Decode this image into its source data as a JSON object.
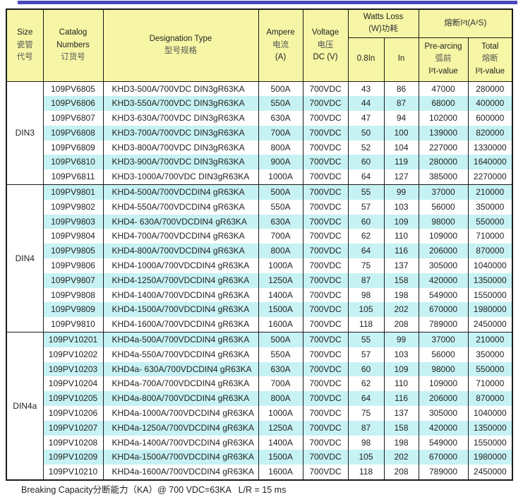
{
  "page": {
    "top_bar_color": "#4747BE",
    "header_bg": "#F6F6A6",
    "stripe_bg": "#C7F2F4",
    "border_color": "#1a1a1a"
  },
  "table": {
    "header": {
      "size": [
        "Size",
        "瓷管",
        "代号"
      ],
      "catalog": [
        "Catalog",
        "Numbers",
        "订货号"
      ],
      "designation": [
        "Designation Type",
        "型号规格"
      ],
      "ampere": [
        "Ampere",
        "电流",
        "(A)"
      ],
      "voltage": [
        "Voltage",
        "电压",
        "DC (V)"
      ],
      "watts_group": [
        "Watts Loss",
        "(W)功耗"
      ],
      "watts_sub_1": "0.8In",
      "watts_sub_2": "In",
      "i2t_group": "熔断I²t(A²S)",
      "prearcing": [
        "Pre-arcing",
        "弧前",
        "I²t-value"
      ],
      "total": [
        "Total",
        "熔断",
        "I²t-value"
      ]
    },
    "groups": [
      {
        "size": "DIN3",
        "rows": [
          {
            "catalog": "109PV6805",
            "designation": "KHD3-500A/700VDC DIN3gR63KA",
            "ampere": "500A",
            "voltage": "700VDC",
            "w08": "43",
            "win": "86",
            "prearc": "47000",
            "total": "280000"
          },
          {
            "catalog": "109PV6806",
            "designation": "KHD3-550A/700VDC DIN3gR63KA",
            "ampere": "550A",
            "voltage": "700VDC",
            "w08": "44",
            "win": "87",
            "prearc": "68000",
            "total": "400000"
          },
          {
            "catalog": "109PV6807",
            "designation": "KHD3-630A/700VDC DIN3gR63KA",
            "ampere": "630A",
            "voltage": "700VDC",
            "w08": "47",
            "win": "94",
            "prearc": "102000",
            "total": "600000"
          },
          {
            "catalog": "109PV6808",
            "designation": "KHD3-700A/700VDC DIN3gR63KA",
            "ampere": "700A",
            "voltage": "700VDC",
            "w08": "50",
            "win": "100",
            "prearc": "139000",
            "total": "820000"
          },
          {
            "catalog": "109PV6809",
            "designation": "KHD3-800A/700VDC DIN3gR63KA",
            "ampere": "800A",
            "voltage": "700VDC",
            "w08": "52",
            "win": "104",
            "prearc": "227000",
            "total": "1330000"
          },
          {
            "catalog": "109PV6810",
            "designation": "KHD3-900A/700VDC DIN3gR63KA",
            "ampere": "900A",
            "voltage": "700VDC",
            "w08": "60",
            "win": "119",
            "prearc": "280000",
            "total": "1640000"
          },
          {
            "catalog": "109PV6811",
            "designation": "KHD3-1000A/700VDC DIN3gR63KA",
            "ampere": "1000A",
            "voltage": "700VDC",
            "w08": "64",
            "win": "127",
            "prearc": "385000",
            "total": "2270000"
          }
        ]
      },
      {
        "size": "DIN4",
        "rows": [
          {
            "catalog": "109PV9801",
            "designation": "KHD4-500A/700VDCDIN4 gR63KA",
            "ampere": "500A",
            "voltage": "700VDC",
            "w08": "55",
            "win": "99",
            "prearc": "37000",
            "total": "210000"
          },
          {
            "catalog": "109PV9802",
            "designation": "KHD4-550A/700VDCDIN4 gR63KA",
            "ampere": "550A",
            "voltage": "700VDC",
            "w08": "57",
            "win": "103",
            "prearc": "56000",
            "total": "350000"
          },
          {
            "catalog": "109PV9803",
            "designation": "KHD4- 630A/700VDCDIN4 gR63KA",
            "ampere": "630A",
            "voltage": "700VDC",
            "w08": "60",
            "win": "109",
            "prearc": "98000",
            "total": "550000"
          },
          {
            "catalog": "109PV9804",
            "designation": "KHD4-700A/700VDCDIN4 gR63KA",
            "ampere": "700A",
            "voltage": "700VDC",
            "w08": "62",
            "win": "110",
            "prearc": "109000",
            "total": "710000"
          },
          {
            "catalog": "109PV9805",
            "designation": "KHD4-800A/700VDCDIN4 gR63KA",
            "ampere": "800A",
            "voltage": "700VDC",
            "w08": "64",
            "win": "116",
            "prearc": "206000",
            "total": "870000"
          },
          {
            "catalog": "109PV9806",
            "designation": "KHD4-1000A/700VDCDIN4 gR63KA",
            "ampere": "1000A",
            "voltage": "700VDC",
            "w08": "75",
            "win": "137",
            "prearc": "305000",
            "total": "1040000"
          },
          {
            "catalog": "109PV9807",
            "designation": "KHD4-1250A/700VDCDIN4 gR63KA",
            "ampere": "1250A",
            "voltage": "700VDC",
            "w08": "87",
            "win": "158",
            "prearc": "420000",
            "total": "1350000"
          },
          {
            "catalog": "109PV9808",
            "designation": "KHD4-1400A/700VDCDIN4 gR63KA",
            "ampere": "1400A",
            "voltage": "700VDC",
            "w08": "98",
            "win": "198",
            "prearc": "549000",
            "total": "1550000"
          },
          {
            "catalog": "109PV9809",
            "designation": "KHD4-1500A/700VDCDIN4 gR63KA",
            "ampere": "1500A",
            "voltage": "700VDC",
            "w08": "105",
            "win": "202",
            "prearc": "670000",
            "total": "1980000"
          },
          {
            "catalog": "109PV9810",
            "designation": "KHD4-1600A/700VDCDIN4 gR63KA",
            "ampere": "1600A",
            "voltage": "700VDC",
            "w08": "118",
            "win": "208",
            "prearc": "789000",
            "total": "2450000"
          }
        ]
      },
      {
        "size": "DIN4a",
        "rows": [
          {
            "catalog": "109PV10201",
            "designation": "KHD4a-500A/700VDCDIN4 gR63KA",
            "ampere": "500A",
            "voltage": "700VDC",
            "w08": "55",
            "win": "99",
            "prearc": "37000",
            "total": "210000"
          },
          {
            "catalog": "109PV10202",
            "designation": "KHD4a-550A/700VDCDIN4 gR63KA",
            "ampere": "550A",
            "voltage": "700VDC",
            "w08": "57",
            "win": "103",
            "prearc": "56000",
            "total": "350000"
          },
          {
            "catalog": "109PV10203",
            "designation": "KHD4a- 630A/700VDCDIN4 gR63KA",
            "ampere": "630A",
            "voltage": "700VDC",
            "w08": "60",
            "win": "109",
            "prearc": "98000",
            "total": "550000"
          },
          {
            "catalog": "109PV10204",
            "designation": "KHD4a-700A/700VDCDIN4 gR63KA",
            "ampere": "700A",
            "voltage": "700VDC",
            "w08": "62",
            "win": "110",
            "prearc": "109000",
            "total": "710000"
          },
          {
            "catalog": "109PV10205",
            "designation": "KHD4a-800A/700VDCDIN4 gR63KA",
            "ampere": "800A",
            "voltage": "700VDC",
            "w08": "64",
            "win": "116",
            "prearc": "206000",
            "total": "870000"
          },
          {
            "catalog": "109PV10206",
            "designation": "KHD4a-1000A/700VDCDIN4 gR63KA",
            "ampere": "1000A",
            "voltage": "700VDC",
            "w08": "75",
            "win": "137",
            "prearc": "305000",
            "total": "1040000"
          },
          {
            "catalog": "109PV10207",
            "designation": "KHD4a-1250A/700VDCDIN4 gR63KA",
            "ampere": "1250A",
            "voltage": "700VDC",
            "w08": "87",
            "win": "158",
            "prearc": "420000",
            "total": "1350000"
          },
          {
            "catalog": "109PV10208",
            "designation": "KHD4a-1400A/700VDCDIN4 gR63KA",
            "ampere": "1400A",
            "voltage": "700VDC",
            "w08": "98",
            "win": "198",
            "prearc": "549000",
            "total": "1550000"
          },
          {
            "catalog": "109PV10209",
            "designation": "KHD4a-1500A/700VDCDIN4 gR63KA",
            "ampere": "1500A",
            "voltage": "700VDC",
            "w08": "105",
            "win": "202",
            "prearc": "670000",
            "total": "1980000"
          },
          {
            "catalog": "109PV10210",
            "designation": "KHD4a-1600A/700VDCDIN4 gR63KA",
            "ampere": "1600A",
            "voltage": "700VDC",
            "w08": "118",
            "win": "208",
            "prearc": "789000",
            "total": "2450000"
          }
        ]
      }
    ]
  },
  "footer": {
    "note": "Breaking Capacity分断能力（KA）@ 700 VDC=63KA   L/R = 15 ms"
  }
}
